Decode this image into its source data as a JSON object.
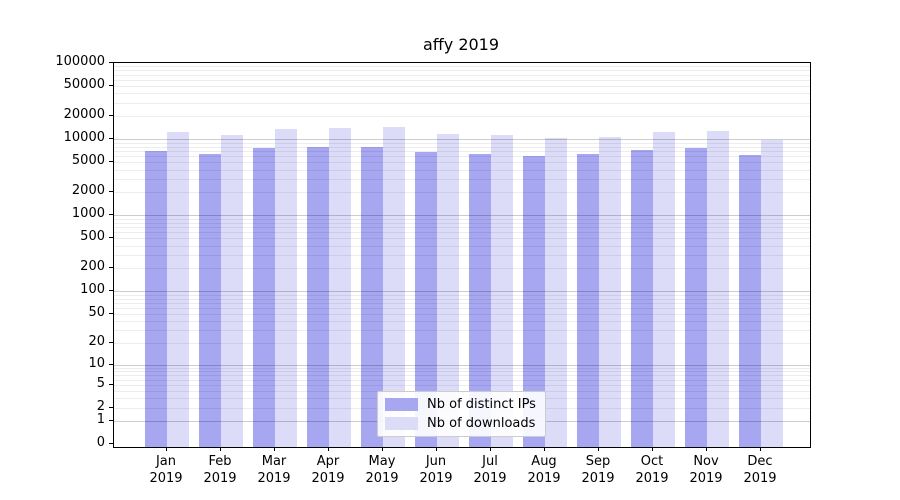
{
  "title": "affy 2019",
  "chart_data": {
    "type": "bar",
    "title": "affy 2019",
    "categories": [
      "Jan",
      "Feb",
      "Mar",
      "Apr",
      "May",
      "Jun",
      "Jul",
      "Aug",
      "Sep",
      "Oct",
      "Nov",
      "Dec"
    ],
    "x_year": "2019",
    "series": [
      {
        "name": "Nb of distinct IPs",
        "color": "#a6a6f1",
        "values": [
          7000,
          6400,
          7700,
          7900,
          8000,
          6800,
          6400,
          6000,
          6400,
          7200,
          7600,
          6200
        ]
      },
      {
        "name": "Nb of downloads",
        "color": "#dcdcf8",
        "values": [
          12400,
          11300,
          13600,
          14000,
          14400,
          11700,
          11300,
          10300,
          10600,
          12400,
          12700,
          9700
        ]
      }
    ],
    "yscale": "log1p",
    "ylim": [
      0,
      100000
    ],
    "yticks": [
      100000,
      50000,
      20000,
      10000,
      5000,
      2000,
      1000,
      500,
      200,
      100,
      50,
      20,
      10,
      5,
      2,
      1,
      0
    ],
    "grid": "horizontal",
    "legend_position": "lower center",
    "xlabel": "",
    "ylabel": ""
  },
  "colors": {
    "bar_distinct_ips": "#a6a6f1",
    "bar_downloads": "#dcdcf8",
    "grid_major": "#d1d1d1",
    "grid_minor": "#efefef",
    "frame": "#000000",
    "background": "#ffffff"
  }
}
